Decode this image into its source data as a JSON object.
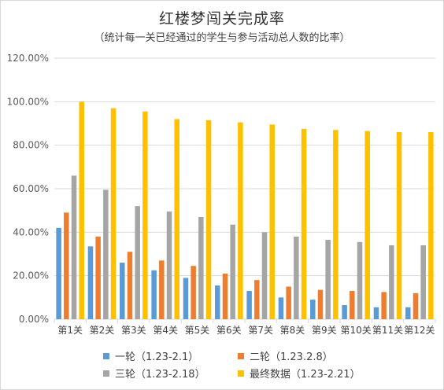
{
  "chart_data": {
    "type": "bar",
    "title": "红楼梦闯关完成率",
    "subtitle": "（统计每一关已经通过的学生与参与活动总人数的比率）",
    "categories": [
      "第1关",
      "第2关",
      "第3关",
      "第4关",
      "第5关",
      "第6关",
      "第7关",
      "第8关",
      "第9关",
      "第10关",
      "第11关",
      "第12关"
    ],
    "yticks": [
      "0.00%",
      "20.00%",
      "40.00%",
      "60.00%",
      "80.00%",
      "100.00%",
      "120.00%"
    ],
    "ylim": [
      0,
      120
    ],
    "grid": true,
    "legend_position": "bottom",
    "series": [
      {
        "name": "一轮（1.23-2.1）",
        "color": "#5b9bd5",
        "values": [
          42,
          33.5,
          26,
          22.5,
          19,
          15.5,
          13,
          10,
          9,
          6.5,
          5.5,
          5.5
        ]
      },
      {
        "name": "二轮（1.23.2.8）",
        "color": "#ed7d31",
        "values": [
          49,
          38,
          31,
          27,
          24.5,
          21,
          18,
          15,
          13.5,
          13,
          12.5,
          12
        ]
      },
      {
        "name": "三轮（1.23-2.18）",
        "color": "#a5a5a5",
        "values": [
          66,
          59.5,
          52,
          49.5,
          47,
          43.5,
          40,
          38,
          36.5,
          35.5,
          34,
          34
        ]
      },
      {
        "name": "最终数据（1.23-2.21）",
        "color": "#ffc000",
        "values": [
          100,
          97,
          95.5,
          92,
          91.5,
          90.5,
          89.5,
          87.5,
          87,
          86.5,
          86,
          86
        ]
      }
    ]
  }
}
